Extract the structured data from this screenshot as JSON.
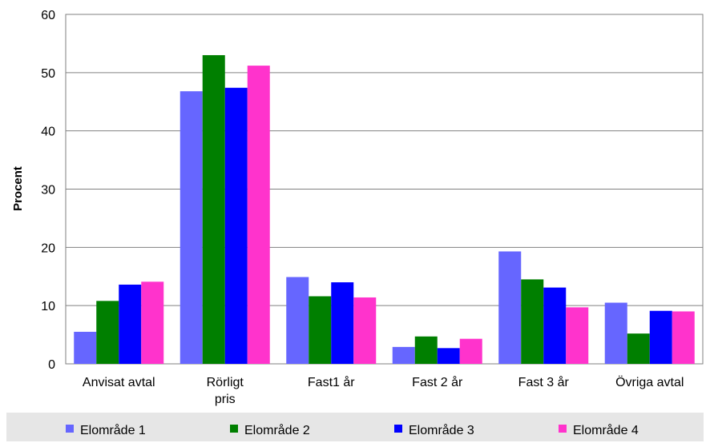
{
  "chart_data": {
    "type": "bar",
    "title": "",
    "xlabel": "",
    "ylabel": "Procent",
    "ylim": [
      0,
      60
    ],
    "yticks": [
      0,
      10,
      20,
      30,
      40,
      50,
      60
    ],
    "grid": true,
    "legend_position": "bottom",
    "categories": [
      [
        "Anvisat avtal"
      ],
      [
        "Rörligt",
        "pris"
      ],
      [
        "Fast1 år"
      ],
      [
        "Fast 2 år"
      ],
      [
        "Fast 3 år"
      ],
      [
        "Övriga avtal"
      ]
    ],
    "series": [
      {
        "name": "Elområde 1",
        "color": "#6666FF",
        "values": [
          5.5,
          46.8,
          14.9,
          2.9,
          19.3,
          10.5
        ]
      },
      {
        "name": "Elområde 2",
        "color": "#007F00",
        "values": [
          10.8,
          53.0,
          11.6,
          4.7,
          14.5,
          5.2
        ]
      },
      {
        "name": "Elområde 3",
        "color": "#0000FF",
        "values": [
          13.6,
          47.4,
          14.0,
          2.7,
          13.1,
          9.1
        ]
      },
      {
        "name": "Elområde 4",
        "color": "#FF33CC",
        "values": [
          14.1,
          51.2,
          11.4,
          4.3,
          9.7,
          9.0
        ]
      }
    ]
  }
}
